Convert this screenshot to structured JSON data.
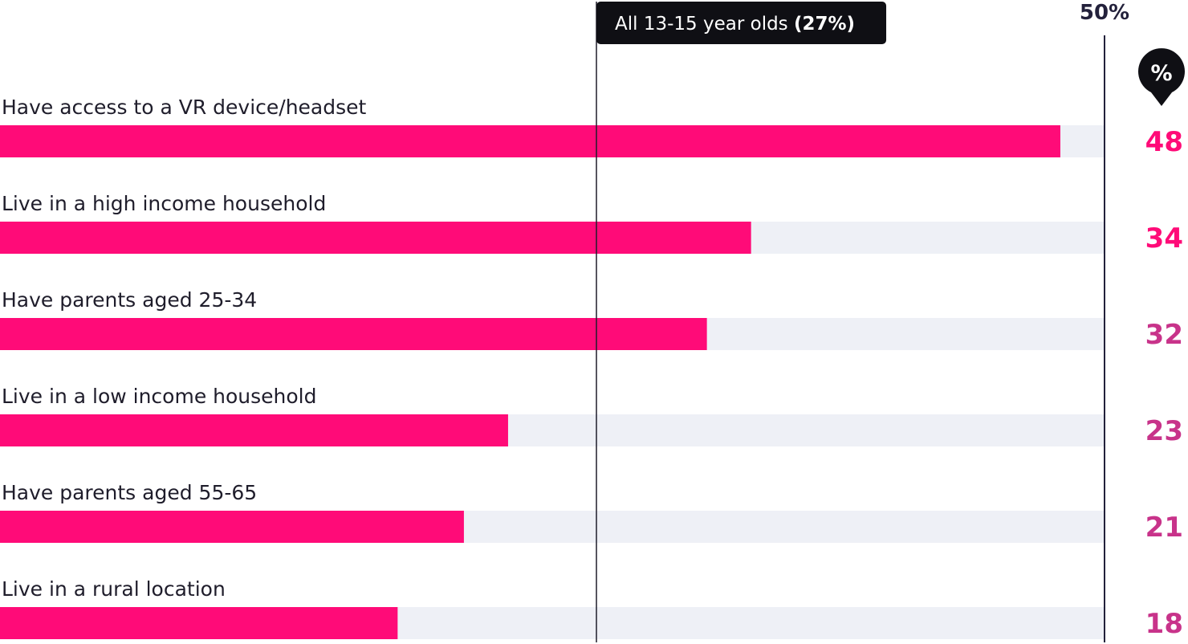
{
  "chart_data": {
    "type": "bar",
    "orientation": "horizontal",
    "categories": [
      "Have access to a VR device/headset",
      "Live in a high income household",
      "Have parents aged 25-34",
      "Live in a low income household",
      "Have parents aged 55-65",
      "Live in a rural location"
    ],
    "values": [
      48,
      34,
      32,
      23,
      21,
      18
    ],
    "value_labels": [
      "48",
      "34",
      "32",
      "23",
      "21",
      "18"
    ],
    "xlim": [
      0,
      50
    ],
    "axis_max_label": "50%",
    "unit_badge": "%",
    "reference_line": {
      "value": 27,
      "label": "All 13-15 year olds ",
      "label_value": "(27%)"
    },
    "colors": {
      "bar": "#ff0b78",
      "track": "#eef0f6",
      "value_text": "#ff0b78",
      "value_text_muted": "#c8338a",
      "ink": "#1f1d2b"
    }
  }
}
